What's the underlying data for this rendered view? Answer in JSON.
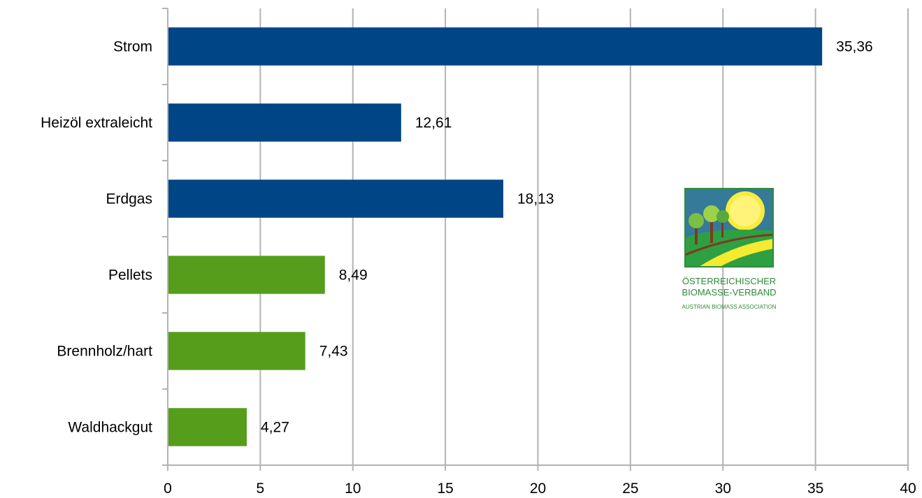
{
  "chart_data": {
    "type": "bar",
    "orientation": "horizontal",
    "categories": [
      "Strom",
      "Heizöl extraleicht",
      "Erdgas",
      "Pellets",
      "Brennholz/hart",
      "Waldhackgut"
    ],
    "values": [
      35.36,
      12.61,
      18.13,
      8.49,
      7.43,
      4.27
    ],
    "value_labels": [
      "35,36",
      "12,61",
      "18,13",
      "8,49",
      "7,43",
      "4,27"
    ],
    "bar_colors": [
      "#004586",
      "#004586",
      "#004586",
      "#579d1c",
      "#579d1c",
      "#579d1c"
    ],
    "title": "",
    "xlabel": "",
    "ylabel": "",
    "xlim": [
      0,
      40
    ],
    "x_ticks": [
      0,
      5,
      10,
      15,
      20,
      25,
      30,
      35,
      40
    ],
    "grid": "vertical",
    "grid_color": "#b3b3b3",
    "legend": "none"
  },
  "logo": {
    "line1": "ÖSTERREICHISCHER",
    "line2": "BIOMASSE-VERBAND",
    "line3": "AUSTRIAN BIOMASS ASSOCIATION",
    "text_color": "#2e8b3a"
  }
}
